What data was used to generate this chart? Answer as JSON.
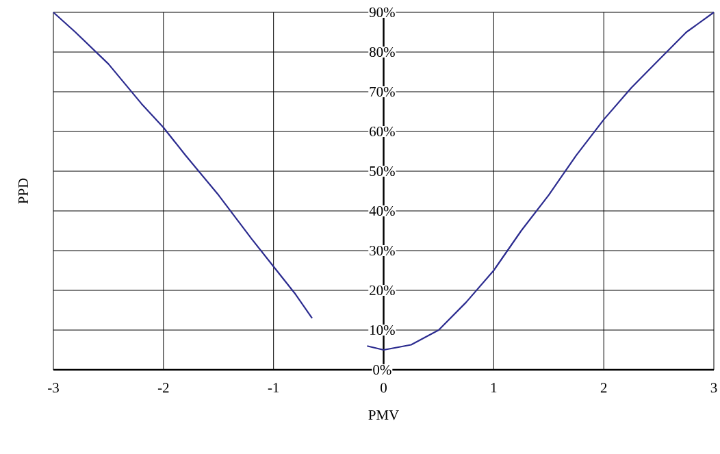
{
  "chart_data": {
    "type": "line",
    "xlabel": "PMV",
    "ylabel": "PPD",
    "x": [
      -3,
      -2.8,
      -2.5,
      -2.2,
      -2,
      -1.8,
      -1.5,
      -1.2,
      -1,
      -0.8,
      -0.65,
      -0.4,
      -0.15,
      0,
      0.25,
      0.5,
      0.75,
      1,
      1.25,
      1.5,
      1.75,
      2,
      2.25,
      2.5,
      2.75,
      3
    ],
    "series": [
      {
        "color": "#2b2b8f",
        "values": [
          90,
          85,
          77,
          67,
          61,
          54,
          44,
          33,
          26,
          19,
          13,
          null,
          6,
          5,
          6.3,
          10,
          17,
          25,
          35,
          44,
          54,
          63,
          71,
          78,
          85,
          90
        ]
      }
    ],
    "xlim": [
      -3,
      3
    ],
    "ylim": [
      0,
      90
    ],
    "xticks": [
      -3,
      -2,
      -1,
      0,
      1,
      2,
      3
    ],
    "yticks": [
      {
        "value": 0,
        "label": "0%"
      },
      {
        "value": 10,
        "label": "10%"
      },
      {
        "value": 20,
        "label": "20%"
      },
      {
        "value": 30,
        "label": "30%"
      },
      {
        "value": 40,
        "label": "40%"
      },
      {
        "value": 50,
        "label": "50%"
      },
      {
        "value": 60,
        "label": "60%"
      },
      {
        "value": 70,
        "label": "70%"
      },
      {
        "value": 80,
        "label": "80%"
      },
      {
        "value": 90,
        "label": "90%"
      }
    ],
    "grid": true,
    "marker": "none",
    "line_style": "solid"
  }
}
